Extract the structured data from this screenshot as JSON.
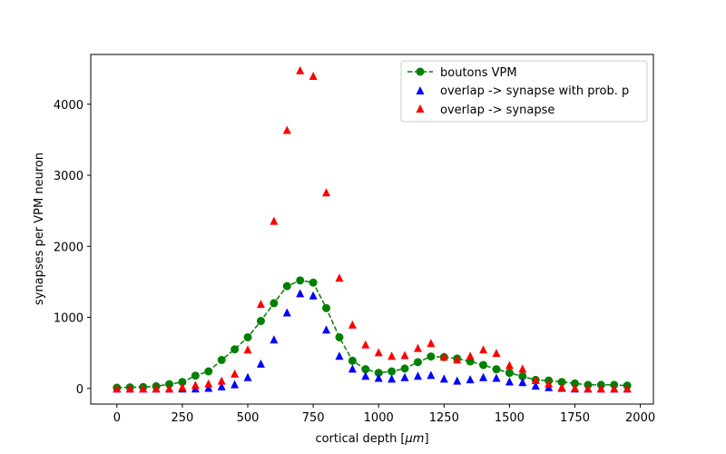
{
  "chart_data": {
    "type": "scatter",
    "title": "",
    "xlabel": "cortical depth [",
    "xlabel_unit": "μm",
    "xlabel_close": "]",
    "ylabel": "synapses per VPM neuron",
    "xlim": [
      -100,
      2050
    ],
    "ylim": [
      -220,
      4700
    ],
    "xticks": [
      "0",
      "250",
      "500",
      "750",
      "1000",
      "1250",
      "1500",
      "1750",
      "2000"
    ],
    "yticks": [
      "0",
      "1000",
      "2000",
      "3000",
      "4000"
    ],
    "legend": "top-right",
    "grid": false,
    "x": [
      0,
      50,
      100,
      150,
      200,
      250,
      300,
      350,
      400,
      450,
      500,
      550,
      600,
      650,
      700,
      750,
      800,
      850,
      900,
      950,
      1000,
      1050,
      1100,
      1150,
      1200,
      1250,
      1300,
      1350,
      1400,
      1450,
      1500,
      1550,
      1600,
      1650,
      1700,
      1750,
      1800,
      1850,
      1900,
      1950
    ],
    "series": [
      {
        "name": "boutons VPM",
        "style": "line-circle-dashed",
        "color": "#008000",
        "values": [
          10,
          15,
          20,
          30,
          60,
          90,
          180,
          240,
          400,
          550,
          720,
          950,
          1200,
          1440,
          1520,
          1490,
          1130,
          720,
          390,
          270,
          220,
          240,
          280,
          370,
          450,
          440,
          420,
          380,
          330,
          270,
          220,
          170,
          120,
          110,
          90,
          70,
          50,
          50,
          50,
          40
        ]
      },
      {
        "name": "overlap -> synapse with prob. p",
        "style": "triangle",
        "color": "#0000ff",
        "values": [
          0,
          0,
          0,
          0,
          0,
          0,
          0,
          10,
          30,
          60,
          160,
          350,
          690,
          1070,
          1340,
          1310,
          830,
          460,
          280,
          180,
          150,
          140,
          160,
          180,
          190,
          140,
          110,
          130,
          160,
          150,
          100,
          90,
          40,
          20,
          10,
          0,
          0,
          0,
          0,
          0
        ]
      },
      {
        "name": "overlap -> synapse",
        "style": "triangle",
        "color": "#ff0000",
        "values": [
          0,
          0,
          0,
          0,
          0,
          20,
          50,
          70,
          110,
          210,
          550,
          1190,
          2360,
          3640,
          4480,
          4400,
          2760,
          1560,
          900,
          620,
          510,
          460,
          470,
          570,
          640,
          450,
          410,
          460,
          550,
          500,
          330,
          280,
          120,
          70,
          20,
          10,
          0,
          0,
          0,
          0
        ]
      }
    ]
  }
}
